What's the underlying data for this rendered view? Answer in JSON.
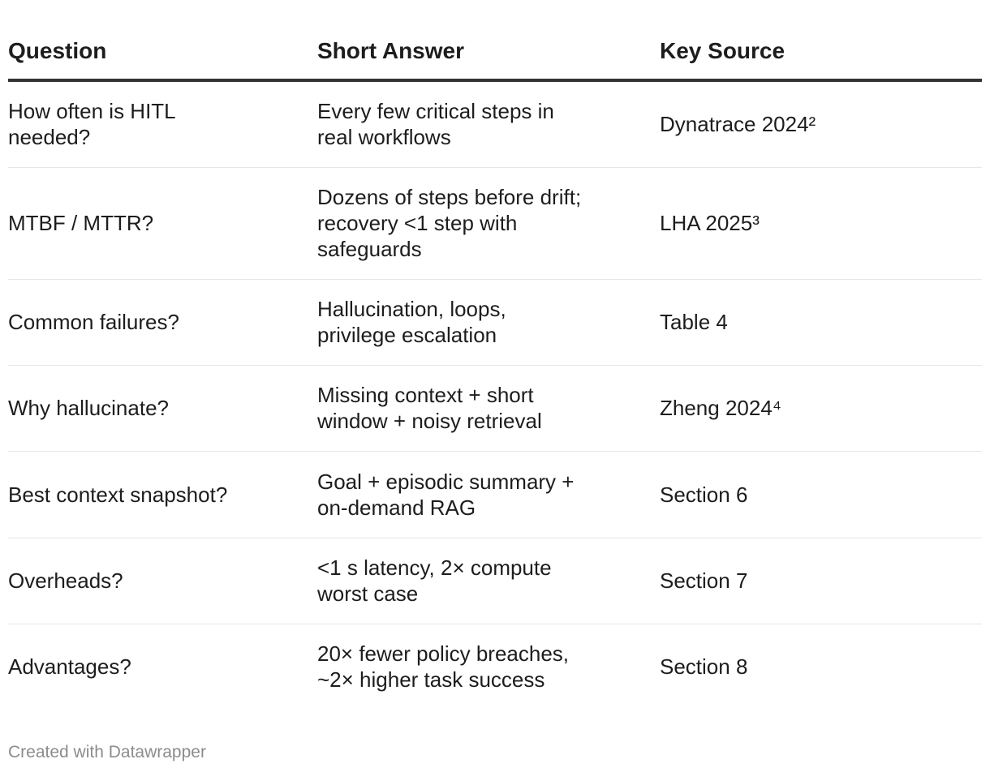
{
  "chart_data": {
    "type": "table",
    "columns": [
      "Question",
      "Short Answer",
      "Key Source"
    ],
    "rows": [
      [
        "How often is HITL needed?",
        "Every few critical steps in real workflows",
        "Dynatrace 2024²"
      ],
      [
        "MTBF / MTTR?",
        "Dozens of steps before drift; recovery <1 step with safeguards",
        "LHA 2025³"
      ],
      [
        "Common failures?",
        "Hallucination, loops, privilege escalation",
        "Table 4"
      ],
      [
        "Why hallucinate?",
        "Missing context + short window + noisy retrieval",
        "Zheng 2024⁴"
      ],
      [
        "Best context snapshot?",
        "Goal + episodic summary + on-demand RAG",
        "Section 6"
      ],
      [
        "Overheads?",
        "<1 s latency, 2× compute worst case",
        "Section 7"
      ],
      [
        "Advantages?",
        "20× fewer policy breaches, ~2× higher task success",
        "Section 8"
      ]
    ]
  },
  "footer": "Created with Datawrapper"
}
